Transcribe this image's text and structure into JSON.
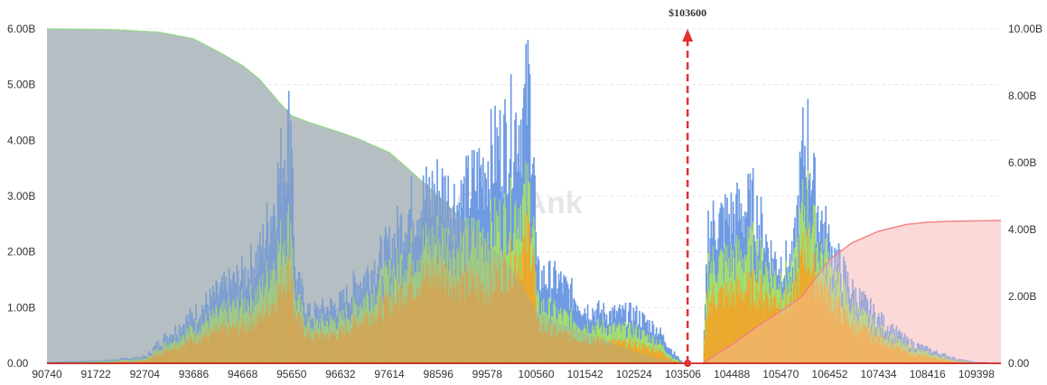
{
  "chart_data": {
    "type": "area",
    "title": "",
    "watermark": "CoinAnk",
    "x_ticks": [
      "90740",
      "91722",
      "92704",
      "93686",
      "94668",
      "95650",
      "96632",
      "97614",
      "98596",
      "99578",
      "100560",
      "101542",
      "102524",
      "103506",
      "104488",
      "105470",
      "106452",
      "107434",
      "108416",
      "109398"
    ],
    "xlim": [
      90740,
      109890
    ],
    "y_left": {
      "ticks": [
        "0.00",
        "1.00B",
        "2.00B",
        "3.00B",
        "4.00B",
        "5.00B",
        "6.00B"
      ],
      "range": [
        0,
        6000000000
      ]
    },
    "y_right": {
      "ticks": [
        "0.00",
        "2.00B",
        "4.00B",
        "6.00B",
        "8.00B",
        "10.00B"
      ],
      "range": [
        0,
        10000000000
      ]
    },
    "grid": true,
    "current_price": {
      "value": 103600,
      "label": "$103600",
      "color": "#e03131"
    },
    "colors": {
      "layer_blue": "#6f9be3",
      "layer_green": "#a8e06a",
      "layer_orange": "#f5a623",
      "cum_short_fill": "#c4cccf",
      "cum_short_line": "#9ee08e",
      "cum_long_fill": "#fde0e0",
      "cum_long_line": "#ef7777",
      "axis_line": "#c00000"
    },
    "series": [
      {
        "name": "",
        "axis": "left",
        "profile": [
          [
            90740,
            0.02
          ],
          [
            92000,
            0.06
          ],
          [
            92704,
            0.12
          ],
          [
            93000,
            0.4
          ],
          [
            93686,
            0.9
          ],
          [
            94200,
            1.3
          ],
          [
            94668,
            1.6
          ],
          [
            95000,
            2.0
          ],
          [
            95300,
            3.0
          ],
          [
            95500,
            4.0
          ],
          [
            95650,
            4.5
          ],
          [
            95700,
            1.6
          ],
          [
            96000,
            0.9
          ],
          [
            96632,
            1.1
          ],
          [
            97000,
            1.5
          ],
          [
            97614,
            2.1
          ],
          [
            98000,
            2.8
          ],
          [
            98596,
            3.2
          ],
          [
            99000,
            2.9
          ],
          [
            99578,
            3.7
          ],
          [
            100000,
            4.2
          ],
          [
            100300,
            4.6
          ],
          [
            100400,
            5.1
          ],
          [
            100500,
            3.8
          ],
          [
            100560,
            1.6
          ],
          [
            101000,
            1.5
          ],
          [
            101542,
            1.0
          ],
          [
            102000,
            0.9
          ],
          [
            102524,
            0.9
          ],
          [
            103000,
            0.6
          ],
          [
            103300,
            0.2
          ],
          [
            103506,
            0.0
          ],
          [
            103900,
            0.0
          ],
          [
            104000,
            2.5
          ],
          [
            104488,
            2.7
          ],
          [
            104900,
            2.9
          ],
          [
            105300,
            1.9
          ],
          [
            105700,
            1.8
          ],
          [
            105900,
            3.9
          ],
          [
            106000,
            4.1
          ],
          [
            106150,
            3.0
          ],
          [
            106452,
            2.1
          ],
          [
            106900,
            1.3
          ],
          [
            107434,
            0.8
          ],
          [
            108000,
            0.4
          ],
          [
            108416,
            0.25
          ],
          [
            109000,
            0.08
          ],
          [
            109398,
            0.02
          ]
        ]
      },
      {
        "name": "",
        "axis": "left",
        "profile": [
          [
            90740,
            0.01
          ],
          [
            92000,
            0.04
          ],
          [
            92704,
            0.08
          ],
          [
            93000,
            0.3
          ],
          [
            93686,
            0.65
          ],
          [
            94200,
            0.9
          ],
          [
            94668,
            1.1
          ],
          [
            95000,
            1.3
          ],
          [
            95300,
            1.9
          ],
          [
            95500,
            2.4
          ],
          [
            95650,
            2.6
          ],
          [
            95700,
            1.2
          ],
          [
            96000,
            0.7
          ],
          [
            96632,
            0.8
          ],
          [
            97000,
            1.1
          ],
          [
            97614,
            1.6
          ],
          [
            98000,
            2.0
          ],
          [
            98596,
            2.3
          ],
          [
            99000,
            2.1
          ],
          [
            99578,
            2.4
          ],
          [
            100000,
            2.7
          ],
          [
            100300,
            3.0
          ],
          [
            100400,
            3.1
          ],
          [
            100500,
            2.7
          ],
          [
            100560,
            1.1
          ],
          [
            101000,
            0.9
          ],
          [
            101542,
            0.7
          ],
          [
            102000,
            0.65
          ],
          [
            102524,
            0.6
          ],
          [
            103000,
            0.4
          ],
          [
            103300,
            0.1
          ],
          [
            103506,
            0.0
          ],
          [
            103900,
            0.0
          ],
          [
            104000,
            1.8
          ],
          [
            104488,
            1.9
          ],
          [
            104900,
            2.1
          ],
          [
            105300,
            1.6
          ],
          [
            105700,
            1.5
          ],
          [
            105900,
            2.8
          ],
          [
            106000,
            3.0
          ],
          [
            106150,
            2.3
          ],
          [
            106452,
            1.7
          ],
          [
            106900,
            1.0
          ],
          [
            107434,
            0.6
          ],
          [
            108000,
            0.3
          ],
          [
            108416,
            0.18
          ],
          [
            109000,
            0.05
          ],
          [
            109398,
            0.01
          ]
        ]
      },
      {
        "name": "",
        "axis": "left",
        "profile": [
          [
            90740,
            0.0
          ],
          [
            92000,
            0.02
          ],
          [
            92704,
            0.05
          ],
          [
            93000,
            0.2
          ],
          [
            93686,
            0.45
          ],
          [
            94200,
            0.6
          ],
          [
            94668,
            0.7
          ],
          [
            95000,
            0.85
          ],
          [
            95300,
            1.2
          ],
          [
            95500,
            1.6
          ],
          [
            95650,
            1.8
          ],
          [
            95700,
            0.9
          ],
          [
            96000,
            0.5
          ],
          [
            96632,
            0.55
          ],
          [
            97000,
            0.8
          ],
          [
            97614,
            1.1
          ],
          [
            98000,
            1.45
          ],
          [
            98596,
            1.7
          ],
          [
            99000,
            1.5
          ],
          [
            99578,
            1.4
          ],
          [
            100000,
            1.8
          ],
          [
            100300,
            2.1
          ],
          [
            100400,
            2.4
          ],
          [
            100500,
            2.1
          ],
          [
            100560,
            0.7
          ],
          [
            101000,
            0.55
          ],
          [
            101542,
            0.45
          ],
          [
            102000,
            0.4
          ],
          [
            102524,
            0.35
          ],
          [
            103000,
            0.25
          ],
          [
            103300,
            0.05
          ],
          [
            103506,
            0.0
          ],
          [
            103900,
            0.0
          ],
          [
            104000,
            1.2
          ],
          [
            104488,
            1.3
          ],
          [
            104900,
            1.4
          ],
          [
            105300,
            1.2
          ],
          [
            105700,
            1.1
          ],
          [
            105900,
            2.0
          ],
          [
            106000,
            2.1
          ],
          [
            106150,
            1.6
          ],
          [
            106452,
            1.2
          ],
          [
            106900,
            0.7
          ],
          [
            107434,
            0.45
          ],
          [
            108000,
            0.2
          ],
          [
            108416,
            0.12
          ],
          [
            109000,
            0.03
          ],
          [
            109398,
            0.0
          ]
        ]
      },
      {
        "name": "",
        "axis": "right",
        "points": [
          [
            90740,
            10.0
          ],
          [
            92000,
            9.98
          ],
          [
            93000,
            9.9
          ],
          [
            93686,
            9.7
          ],
          [
            94200,
            9.3
          ],
          [
            94668,
            8.9
          ],
          [
            95000,
            8.5
          ],
          [
            95400,
            7.8
          ],
          [
            95650,
            7.4
          ],
          [
            96000,
            7.2
          ],
          [
            96632,
            6.9
          ],
          [
            97000,
            6.7
          ],
          [
            97614,
            6.3
          ],
          [
            98000,
            5.8
          ],
          [
            98596,
            5.0
          ],
          [
            99000,
            4.4
          ],
          [
            99578,
            3.6
          ],
          [
            100000,
            3.0
          ],
          [
            100300,
            2.3
          ],
          [
            100560,
            1.55
          ],
          [
            101000,
            1.2
          ],
          [
            101542,
            0.9
          ],
          [
            102000,
            0.65
          ],
          [
            102524,
            0.35
          ],
          [
            103000,
            0.15
          ],
          [
            103506,
            0.0
          ]
        ]
      },
      {
        "name": "",
        "axis": "right",
        "points": [
          [
            103900,
            0.0
          ],
          [
            104488,
            0.55
          ],
          [
            105000,
            1.1
          ],
          [
            105470,
            1.55
          ],
          [
            105900,
            2.0
          ],
          [
            106200,
            2.6
          ],
          [
            106452,
            3.1
          ],
          [
            106900,
            3.6
          ],
          [
            107434,
            3.95
          ],
          [
            108000,
            4.15
          ],
          [
            108416,
            4.22
          ],
          [
            109000,
            4.25
          ],
          [
            109890,
            4.27
          ]
        ]
      }
    ]
  }
}
